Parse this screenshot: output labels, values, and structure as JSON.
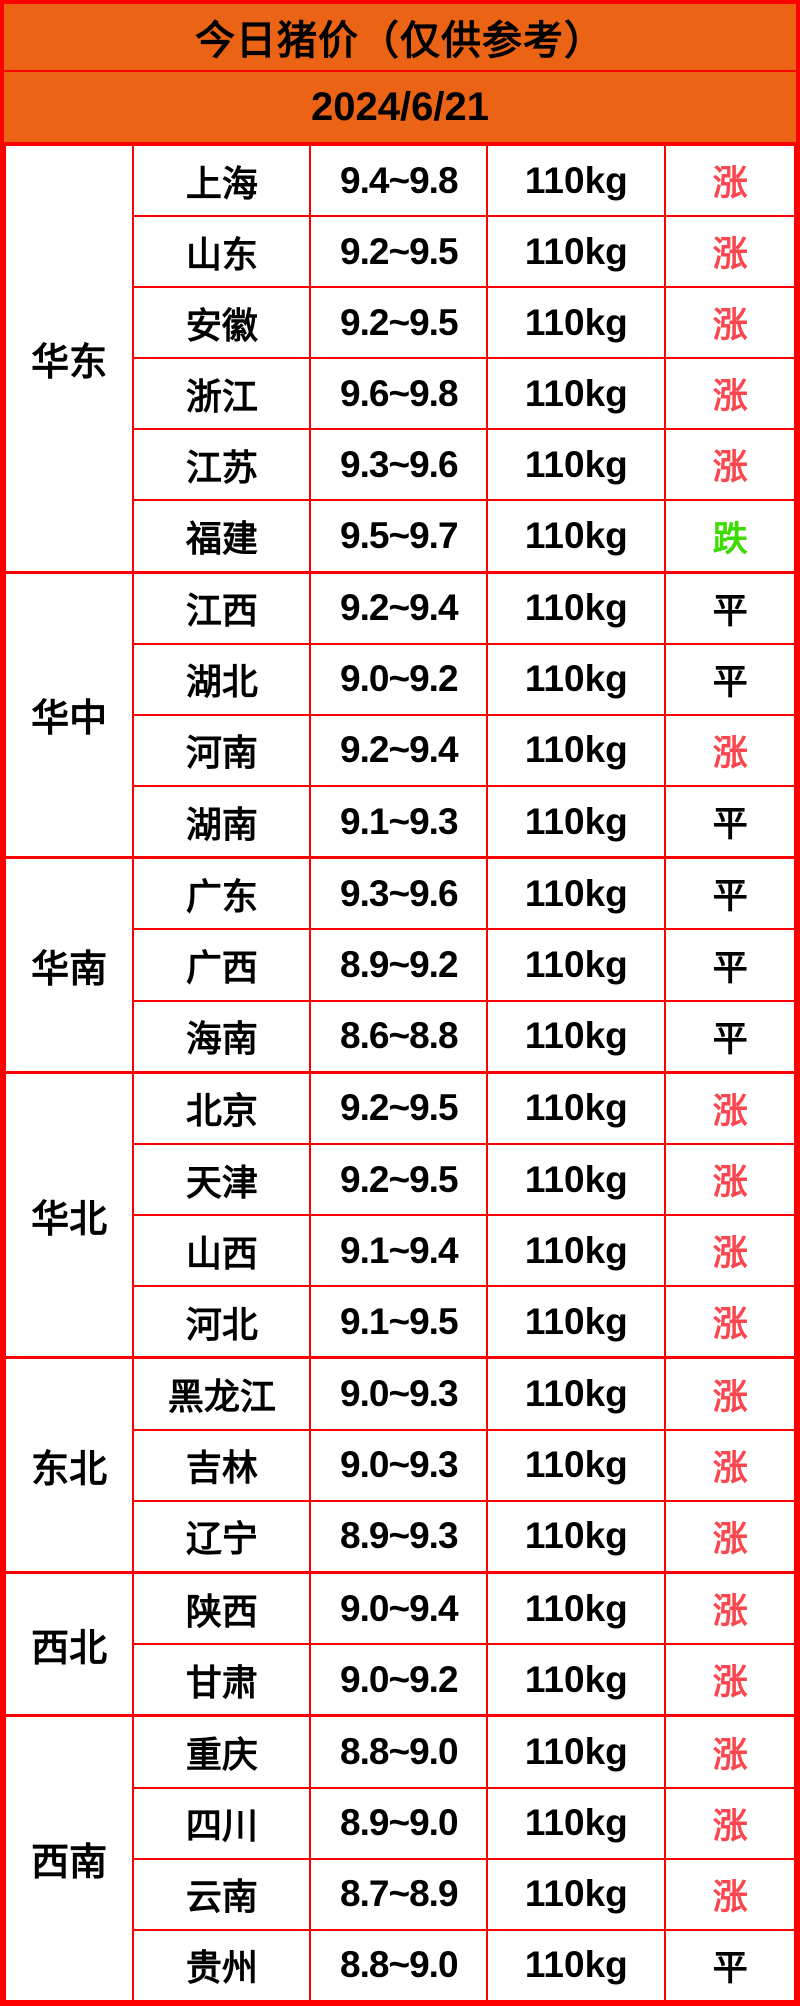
{
  "header": {
    "title": "今日猪价（仅供参考）",
    "date": "2024/6/21"
  },
  "table": {
    "trend_colors": {
      "涨": "#f9464f",
      "跌": "#3cdc00",
      "平": "#000000"
    },
    "groups": [
      {
        "region": "华东",
        "rows": [
          {
            "province": "上海",
            "price": "9.4~9.8",
            "weight": "110kg",
            "trend": "涨"
          },
          {
            "province": "山东",
            "price": "9.2~9.5",
            "weight": "110kg",
            "trend": "涨"
          },
          {
            "province": "安徽",
            "price": "9.2~9.5",
            "weight": "110kg",
            "trend": "涨"
          },
          {
            "province": "浙江",
            "price": "9.6~9.8",
            "weight": "110kg",
            "trend": "涨"
          },
          {
            "province": "江苏",
            "price": "9.3~9.6",
            "weight": "110kg",
            "trend": "涨"
          },
          {
            "province": "福建",
            "price": "9.5~9.7",
            "weight": "110kg",
            "trend": "跌"
          }
        ]
      },
      {
        "region": "华中",
        "rows": [
          {
            "province": "江西",
            "price": "9.2~9.4",
            "weight": "110kg",
            "trend": "平"
          },
          {
            "province": "湖北",
            "price": "9.0~9.2",
            "weight": "110kg",
            "trend": "平"
          },
          {
            "province": "河南",
            "price": "9.2~9.4",
            "weight": "110kg",
            "trend": "涨"
          },
          {
            "province": "湖南",
            "price": "9.1~9.3",
            "weight": "110kg",
            "trend": "平"
          }
        ]
      },
      {
        "region": "华南",
        "rows": [
          {
            "province": "广东",
            "price": "9.3~9.6",
            "weight": "110kg",
            "trend": "平"
          },
          {
            "province": "广西",
            "price": "8.9~9.2",
            "weight": "110kg",
            "trend": "平"
          },
          {
            "province": "海南",
            "price": "8.6~8.8",
            "weight": "110kg",
            "trend": "平"
          }
        ]
      },
      {
        "region": "华北",
        "rows": [
          {
            "province": "北京",
            "price": "9.2~9.5",
            "weight": "110kg",
            "trend": "涨"
          },
          {
            "province": "天津",
            "price": "9.2~9.5",
            "weight": "110kg",
            "trend": "涨"
          },
          {
            "province": "山西",
            "price": "9.1~9.4",
            "weight": "110kg",
            "trend": "涨"
          },
          {
            "province": "河北",
            "price": "9.1~9.5",
            "weight": "110kg",
            "trend": "涨"
          }
        ]
      },
      {
        "region": "东北",
        "rows": [
          {
            "province": "黑龙江",
            "price": "9.0~9.3",
            "weight": "110kg",
            "trend": "涨"
          },
          {
            "province": "吉林",
            "price": "9.0~9.3",
            "weight": "110kg",
            "trend": "涨"
          },
          {
            "province": "辽宁",
            "price": "8.9~9.3",
            "weight": "110kg",
            "trend": "涨"
          }
        ]
      },
      {
        "region": "西北",
        "rows": [
          {
            "province": "陕西",
            "price": "9.0~9.4",
            "weight": "110kg",
            "trend": "涨"
          },
          {
            "province": "甘肃",
            "price": "9.0~9.2",
            "weight": "110kg",
            "trend": "涨"
          }
        ]
      },
      {
        "region": "西南",
        "rows": [
          {
            "province": "重庆",
            "price": "8.8~9.0",
            "weight": "110kg",
            "trend": "涨"
          },
          {
            "province": "四川",
            "price": "8.9~9.0",
            "weight": "110kg",
            "trend": "涨"
          },
          {
            "province": "云南",
            "price": "8.7~8.9",
            "weight": "110kg",
            "trend": "涨"
          },
          {
            "province": "贵州",
            "price": "8.8~9.0",
            "weight": "110kg",
            "trend": "平"
          }
        ]
      }
    ]
  }
}
